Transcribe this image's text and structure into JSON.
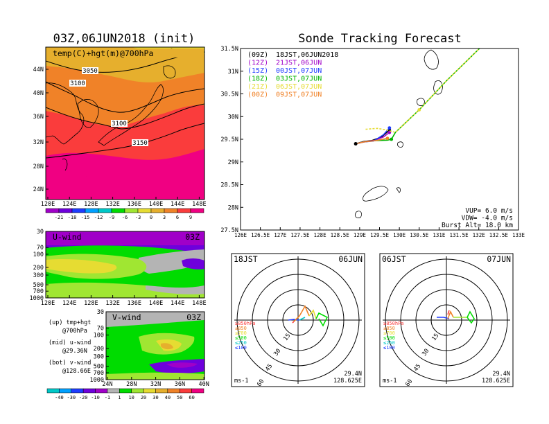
{
  "map_panel": {
    "title": "03Z,06JUN2018 (init)",
    "label": "temp(C)+hgt(m)@700hPa",
    "contours": [
      "3050",
      "3100",
      "3100",
      "3150"
    ],
    "lat_ticks": [
      "44N",
      "40N",
      "36N",
      "32N",
      "28N",
      "24N"
    ],
    "lon_ticks": [
      "120E",
      "124E",
      "128E",
      "132E",
      "136E",
      "140E",
      "144E",
      "148E"
    ]
  },
  "temp_colorbar": {
    "labels": [
      "-21",
      "-18",
      "-15",
      "-12",
      "-9",
      "-6",
      "-3",
      "0",
      "3",
      "6",
      "9"
    ],
    "colors": [
      "#a000c8",
      "#6e00dc",
      "#1e3cff",
      "#00a0ff",
      "#00c8c8",
      "#00dc00",
      "#a0e632",
      "#e6dc32",
      "#e6af2d",
      "#f08228",
      "#fa3c3c",
      "#f00082"
    ]
  },
  "u_panel": {
    "label": "U-wind",
    "time": "03Z",
    "p_ticks": [
      "30",
      "70",
      "100",
      "200",
      "300",
      "500",
      "700",
      "1000"
    ],
    "lon_ticks": [
      "120E",
      "124E",
      "128E",
      "132E",
      "136E",
      "140E",
      "144E",
      "148E"
    ]
  },
  "v_panel": {
    "label": "V-wind",
    "time": "03Z",
    "p_ticks": [
      "30",
      "70",
      "100",
      "200",
      "300",
      "500",
      "700",
      "1000"
    ],
    "lat_ticks": [
      "24N",
      "28N",
      "32N",
      "36N",
      "40N"
    ]
  },
  "legend_notes": [
    [
      "(up) tmp+hgt",
      "@700hPa"
    ],
    [
      "(mid) u-wind",
      "@29.36N"
    ],
    [
      "(bot) v-wind",
      "@128.66E"
    ]
  ],
  "wind_colorbar": {
    "labels": [
      "-40",
      "-30",
      "-20",
      "-10",
      "-1",
      "1",
      "10",
      "20",
      "30",
      "40",
      "50",
      "60"
    ],
    "colors": [
      "#00c8c8",
      "#00a0ff",
      "#1e3cff",
      "#6e00dc",
      "#a000c8",
      "#b4b4b4",
      "#00dc00",
      "#a0e632",
      "#e6dc32",
      "#e6af2d",
      "#f08228",
      "#fa3c3c",
      "#f00082"
    ]
  },
  "tracking": {
    "title": "Sonde Tracking Forecast",
    "legend": [
      {
        "code": "(09Z)",
        "text": "18JST,06JUN2018",
        "color": "#000000"
      },
      {
        "code": "(12Z)",
        "text": "21JST,06JUN",
        "color": "#a000c8"
      },
      {
        "code": "(15Z)",
        "text": "00JST,07JUN",
        "color": "#1e3cff"
      },
      {
        "code": "(18Z)",
        "text": "03JST,07JUN",
        "color": "#00b400"
      },
      {
        "code": "(21Z)",
        "text": "06JST,07JUN",
        "color": "#e6dc32"
      },
      {
        "code": "(00Z)",
        "text": "09JST,07JUN",
        "color": "#f08228"
      }
    ],
    "lat_ticks": [
      "31.5N",
      "31N",
      "30.5N",
      "30N",
      "29.5N",
      "29N",
      "28.5N",
      "28N",
      "27.5N"
    ],
    "lon_ticks": [
      "126E",
      "126.5E",
      "127E",
      "127.5E",
      "128E",
      "128.5E",
      "129E",
      "129.5E",
      "130E",
      "130.5E",
      "131E",
      "131.5E",
      "132E",
      "132.5E",
      "133E"
    ],
    "info": [
      "VUP=  6.0  m/s",
      "VDW= -4.0  m/s",
      "Burst Alt=  18.0  km"
    ]
  },
  "chart_data": [
    {
      "type": "line",
      "title": "Sonde Tracking Forecast",
      "xlim": [
        126,
        133
      ],
      "ylim": [
        27.5,
        31.5
      ],
      "series": [
        {
          "name": "(09Z) 18JST,06JUN2018",
          "points": [
            [
              128.9,
              29.4
            ],
            [
              129.1,
              29.45
            ],
            [
              129.3,
              29.47
            ],
            [
              129.55,
              29.55
            ],
            [
              129.75,
              29.7
            ]
          ]
        },
        {
          "name": "(12Z) 21JST,06JUN",
          "points": [
            [
              128.9,
              29.4
            ],
            [
              129.1,
              29.44
            ],
            [
              129.35,
              29.47
            ],
            [
              129.6,
              29.55
            ],
            [
              129.75,
              29.65
            ]
          ]
        },
        {
          "name": "(15Z) 00JST,07JUN",
          "points": [
            [
              128.9,
              29.4
            ],
            [
              129.1,
              29.44
            ],
            [
              129.35,
              29.46
            ],
            [
              129.6,
              29.6
            ],
            [
              129.75,
              29.75
            ]
          ]
        },
        {
          "name": "(18Z) 03JST,07JUN",
          "points": [
            [
              128.9,
              29.4
            ],
            [
              129.1,
              29.45
            ],
            [
              129.4,
              29.47
            ],
            [
              129.7,
              29.48
            ],
            [
              129.8,
              29.5
            ],
            [
              129.9,
              29.65
            ],
            [
              130.5,
              30.15
            ],
            [
              131.2,
              30.8
            ],
            [
              132.6,
              32.0
            ]
          ]
        },
        {
          "name": "(21Z) 06JST,07JUN",
          "points": [
            [
              129.15,
              29.72
            ],
            [
              129.45,
              29.74
            ],
            [
              129.7,
              29.7
            ],
            [
              129.9,
              29.65
            ],
            [
              130.5,
              30.15
            ],
            [
              131.2,
              30.8
            ],
            [
              132.6,
              32.0
            ]
          ]
        },
        {
          "name": "(00Z) 09JST,07JUN",
          "points": [
            [
              128.9,
              29.4
            ],
            [
              129.1,
              29.44
            ],
            [
              129.4,
              29.47
            ],
            [
              129.7,
              29.52
            ]
          ]
        }
      ]
    }
  ],
  "hodo_left": {
    "time": "18JST",
    "date": "06JUN",
    "lat": "29.4N",
    "lon": "128.625E",
    "unit": "ms-1",
    "rings": [
      "15",
      "30",
      "45",
      "60"
    ]
  },
  "hodo_right": {
    "time": "06JST",
    "date": "07JUN",
    "lat": "29.4N",
    "lon": "128.625E",
    "unit": "ms-1",
    "rings": [
      "15",
      "30",
      "45",
      "60"
    ]
  },
  "hodo_levels": [
    {
      "label": "≥850hPa",
      "color": "#fa3c3c"
    },
    {
      "label": "≤850",
      "color": "#f08228"
    },
    {
      "label": "≤700",
      "color": "#e6dc32"
    },
    {
      "label": "≤500",
      "color": "#00dc00"
    },
    {
      "label": "≤250",
      "color": "#00c8c8"
    },
    {
      "label": "≤100",
      "color": "#1e3cff"
    }
  ]
}
